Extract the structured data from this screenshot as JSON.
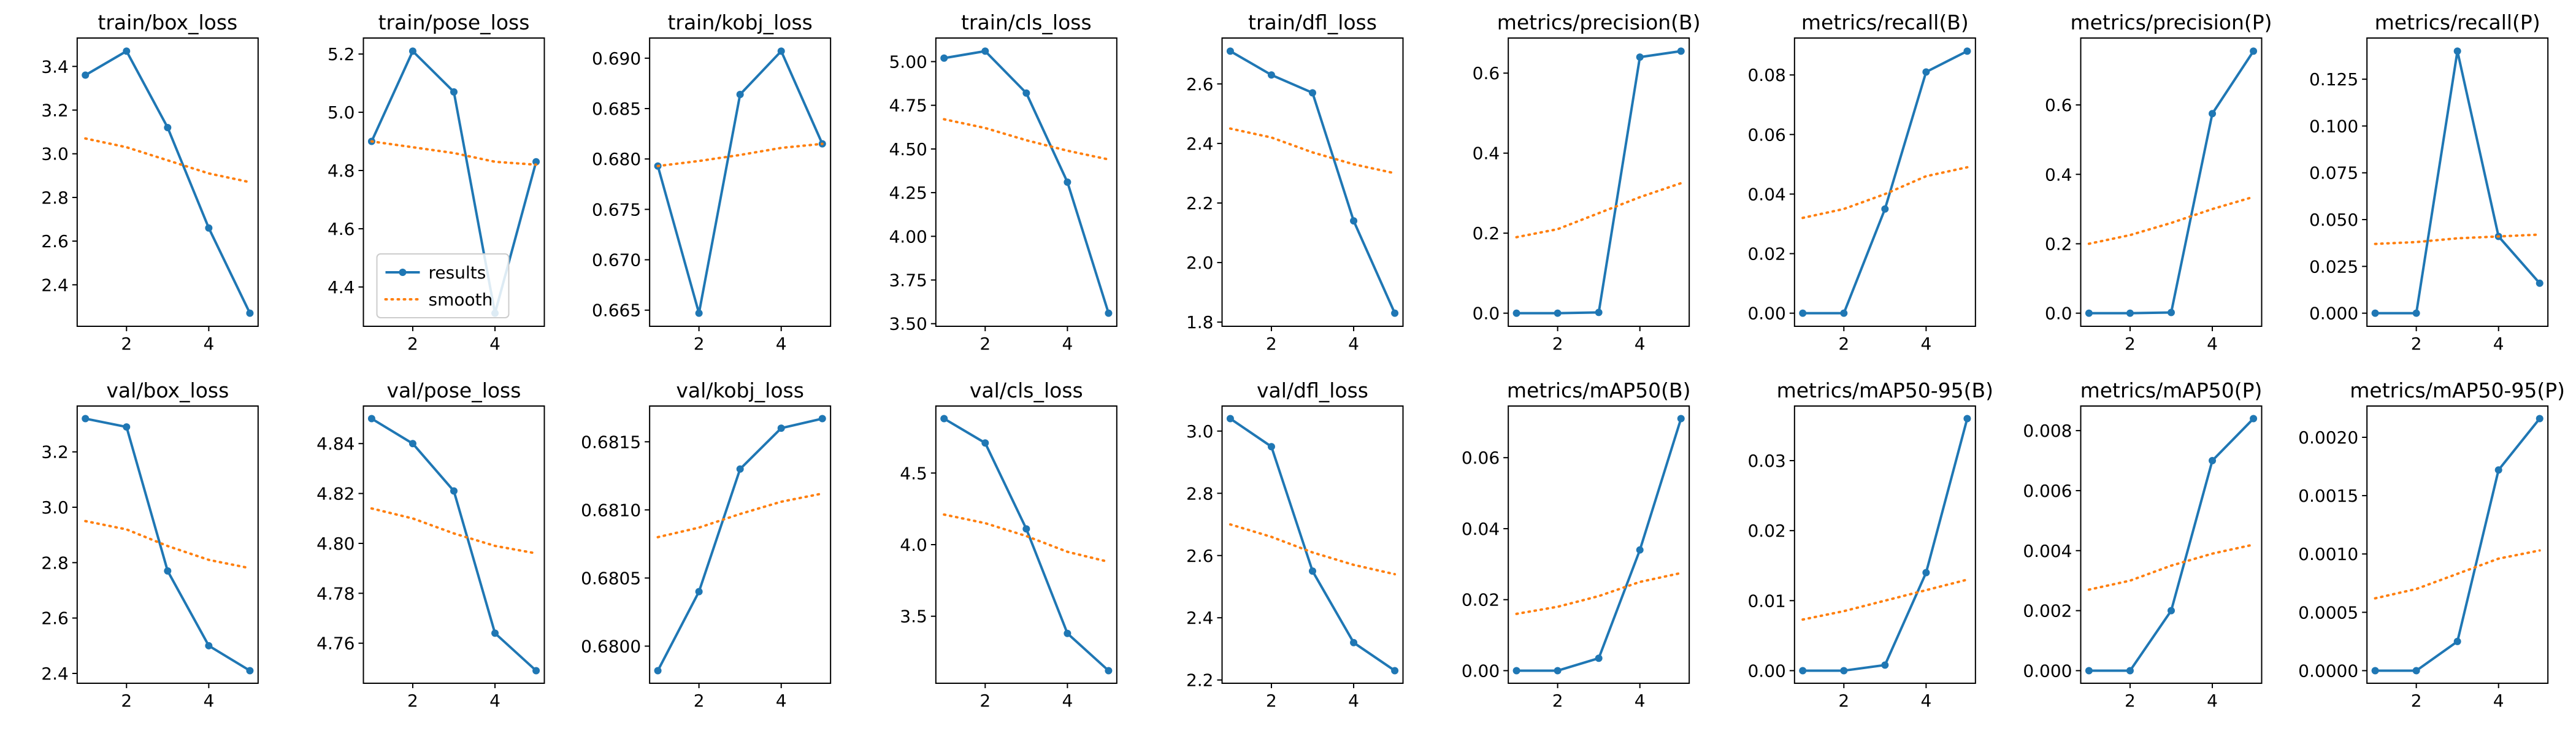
{
  "chart_data": [
    {
      "type": "line",
      "title": "train/box_loss",
      "x": [
        1,
        2,
        3,
        4,
        5
      ],
      "series": [
        {
          "name": "results",
          "values": [
            3.36,
            3.47,
            3.12,
            2.66,
            2.27
          ]
        },
        {
          "name": "smooth",
          "values": [
            3.07,
            3.03,
            2.97,
            2.91,
            2.87
          ]
        }
      ],
      "xticks": [
        "2",
        "4"
      ],
      "yticks": [
        2.4,
        2.6,
        2.8,
        3.0,
        3.2,
        3.4
      ],
      "yticklabels": [
        "2.4",
        "2.6",
        "2.8",
        "3.0",
        "3.2",
        "3.4"
      ]
    },
    {
      "type": "line",
      "title": "train/pose_loss",
      "x": [
        1,
        2,
        3,
        4,
        5
      ],
      "series": [
        {
          "name": "results",
          "values": [
            4.9,
            5.21,
            5.07,
            4.31,
            4.83
          ]
        },
        {
          "name": "smooth",
          "values": [
            4.9,
            4.88,
            4.86,
            4.83,
            4.82
          ]
        }
      ],
      "xticks": [
        "2",
        "4"
      ],
      "yticks": [
        4.4,
        4.6,
        4.8,
        5.0,
        5.2
      ],
      "yticklabels": [
        "4.4",
        "4.6",
        "4.8",
        "5.0",
        "5.2"
      ],
      "legend": {
        "labels": [
          "results",
          "smooth"
        ],
        "placement": "lower-left"
      }
    },
    {
      "type": "line",
      "title": "train/kobj_loss",
      "x": [
        1,
        2,
        3,
        4,
        5
      ],
      "series": [
        {
          "name": "results",
          "values": [
            0.6793,
            0.6647,
            0.6864,
            0.6907,
            0.6815
          ]
        },
        {
          "name": "smooth",
          "values": [
            0.6793,
            0.6798,
            0.6804,
            0.6811,
            0.6815
          ]
        }
      ],
      "xticks": [
        "2",
        "4"
      ],
      "yticks": [
        0.665,
        0.67,
        0.675,
        0.68,
        0.685,
        0.69
      ],
      "yticklabels": [
        "0.665",
        "0.670",
        "0.675",
        "0.680",
        "0.685",
        "0.690"
      ]
    },
    {
      "type": "line",
      "title": "train/cls_loss",
      "x": [
        1,
        2,
        3,
        4,
        5
      ],
      "series": [
        {
          "name": "results",
          "values": [
            5.02,
            5.06,
            4.82,
            4.31,
            3.56
          ]
        },
        {
          "name": "smooth",
          "values": [
            4.67,
            4.62,
            4.55,
            4.49,
            4.44
          ]
        }
      ],
      "xticks": [
        "2",
        "4"
      ],
      "yticks": [
        3.5,
        3.75,
        4.0,
        4.25,
        4.5,
        4.75,
        5.0
      ],
      "yticklabels": [
        "3.50",
        "3.75",
        "4.00",
        "4.25",
        "4.50",
        "4.75",
        "5.00"
      ]
    },
    {
      "type": "line",
      "title": "train/dfl_loss",
      "x": [
        1,
        2,
        3,
        4,
        5
      ],
      "series": [
        {
          "name": "results",
          "values": [
            2.71,
            2.63,
            2.57,
            2.14,
            1.83
          ]
        },
        {
          "name": "smooth",
          "values": [
            2.45,
            2.42,
            2.37,
            2.33,
            2.3
          ]
        }
      ],
      "xticks": [
        "2",
        "4"
      ],
      "yticks": [
        1.8,
        2.0,
        2.2,
        2.4,
        2.6
      ],
      "yticklabels": [
        "1.8",
        "2.0",
        "2.2",
        "2.4",
        "2.6"
      ]
    },
    {
      "type": "line",
      "title": "metrics/precision(B)",
      "x": [
        1,
        2,
        3,
        4,
        5
      ],
      "series": [
        {
          "name": "results",
          "values": [
            0.0,
            0.0,
            0.002,
            0.64,
            0.655
          ]
        },
        {
          "name": "smooth",
          "values": [
            0.19,
            0.21,
            0.25,
            0.29,
            0.325
          ]
        }
      ],
      "xticks": [
        "2",
        "4"
      ],
      "yticks": [
        0.0,
        0.2,
        0.4,
        0.6
      ],
      "yticklabels": [
        "0.0",
        "0.2",
        "0.4",
        "0.6"
      ]
    },
    {
      "type": "line",
      "title": "metrics/recall(B)",
      "x": [
        1,
        2,
        3,
        4,
        5
      ],
      "series": [
        {
          "name": "results",
          "values": [
            0.0,
            0.0,
            0.035,
            0.081,
            0.088
          ]
        },
        {
          "name": "smooth",
          "values": [
            0.032,
            0.035,
            0.04,
            0.046,
            0.049
          ]
        }
      ],
      "xticks": [
        "2",
        "4"
      ],
      "yticks": [
        0.0,
        0.02,
        0.04,
        0.06,
        0.08
      ],
      "yticklabels": [
        "0.00",
        "0.02",
        "0.04",
        "0.06",
        "0.08"
      ]
    },
    {
      "type": "line",
      "title": "metrics/precision(P)",
      "x": [
        1,
        2,
        3,
        4,
        5
      ],
      "series": [
        {
          "name": "results",
          "values": [
            0.0,
            0.0,
            0.002,
            0.575,
            0.755
          ]
        },
        {
          "name": "smooth",
          "values": [
            0.2,
            0.225,
            0.26,
            0.3,
            0.335
          ]
        }
      ],
      "xticks": [
        "2",
        "4"
      ],
      "yticks": [
        0.0,
        0.2,
        0.4,
        0.6
      ],
      "yticklabels": [
        "0.0",
        "0.2",
        "0.4",
        "0.6"
      ]
    },
    {
      "type": "line",
      "title": "metrics/recall(P)",
      "x": [
        1,
        2,
        3,
        4,
        5
      ],
      "series": [
        {
          "name": "results",
          "values": [
            0.0,
            0.0,
            0.14,
            0.041,
            0.016
          ]
        },
        {
          "name": "smooth",
          "values": [
            0.037,
            0.038,
            0.04,
            0.041,
            0.042
          ]
        }
      ],
      "xticks": [
        "2",
        "4"
      ],
      "yticks": [
        0.0,
        0.025,
        0.05,
        0.075,
        0.1,
        0.125
      ],
      "yticklabels": [
        "0.000",
        "0.025",
        "0.050",
        "0.075",
        "0.100",
        "0.125"
      ]
    },
    {
      "type": "line",
      "title": "val/box_loss",
      "x": [
        1,
        2,
        3,
        4,
        5
      ],
      "series": [
        {
          "name": "results",
          "values": [
            3.32,
            3.29,
            2.77,
            2.5,
            2.41
          ]
        },
        {
          "name": "smooth",
          "values": [
            2.95,
            2.92,
            2.86,
            2.81,
            2.78
          ]
        }
      ],
      "xticks": [
        "2",
        "4"
      ],
      "yticks": [
        2.4,
        2.6,
        2.8,
        3.0,
        3.2
      ],
      "yticklabels": [
        "2.4",
        "2.6",
        "2.8",
        "3.0",
        "3.2"
      ]
    },
    {
      "type": "line",
      "title": "val/pose_loss",
      "x": [
        1,
        2,
        3,
        4,
        5
      ],
      "series": [
        {
          "name": "results",
          "values": [
            4.85,
            4.84,
            4.821,
            4.764,
            4.749
          ]
        },
        {
          "name": "smooth",
          "values": [
            4.814,
            4.81,
            4.804,
            4.799,
            4.796
          ]
        }
      ],
      "xticks": [
        "2",
        "4"
      ],
      "yticks": [
        4.76,
        4.78,
        4.8,
        4.82,
        4.84
      ],
      "yticklabels": [
        "4.76",
        "4.78",
        "4.80",
        "4.82",
        "4.84"
      ]
    },
    {
      "type": "line",
      "title": "val/kobj_loss",
      "x": [
        1,
        2,
        3,
        4,
        5
      ],
      "series": [
        {
          "name": "results",
          "values": [
            0.67982,
            0.6804,
            0.6813,
            0.6816,
            0.68167
          ]
        },
        {
          "name": "smooth",
          "values": [
            0.6808,
            0.68087,
            0.68097,
            0.68106,
            0.68112
          ]
        }
      ],
      "xticks": [
        "2",
        "4"
      ],
      "yticks": [
        0.68,
        0.6805,
        0.681,
        0.6815
      ],
      "yticklabels": [
        "0.6800",
        "0.6805",
        "0.6810",
        "0.6815"
      ]
    },
    {
      "type": "line",
      "title": "val/cls_loss",
      "x": [
        1,
        2,
        3,
        4,
        5
      ],
      "series": [
        {
          "name": "results",
          "values": [
            4.88,
            4.71,
            4.11,
            3.38,
            3.12
          ]
        },
        {
          "name": "smooth",
          "values": [
            4.21,
            4.15,
            4.06,
            3.95,
            3.88
          ]
        }
      ],
      "xticks": [
        "2",
        "4"
      ],
      "yticks": [
        3.5,
        4.0,
        4.5
      ],
      "yticklabels": [
        "3.5",
        "4.0",
        "4.5"
      ]
    },
    {
      "type": "line",
      "title": "val/dfl_loss",
      "x": [
        1,
        2,
        3,
        4,
        5
      ],
      "series": [
        {
          "name": "results",
          "values": [
            3.04,
            2.95,
            2.55,
            2.32,
            2.23
          ]
        },
        {
          "name": "smooth",
          "values": [
            2.7,
            2.66,
            2.61,
            2.57,
            2.54
          ]
        }
      ],
      "xticks": [
        "2",
        "4"
      ],
      "yticks": [
        2.2,
        2.4,
        2.6,
        2.8,
        3.0
      ],
      "yticklabels": [
        "2.2",
        "2.4",
        "2.6",
        "2.8",
        "3.0"
      ]
    },
    {
      "type": "line",
      "title": "metrics/mAP50(B)",
      "x": [
        1,
        2,
        3,
        4,
        5
      ],
      "series": [
        {
          "name": "results",
          "values": [
            0.0,
            0.0,
            0.0035,
            0.034,
            0.071
          ]
        },
        {
          "name": "smooth",
          "values": [
            0.016,
            0.018,
            0.021,
            0.025,
            0.0275
          ]
        }
      ],
      "xticks": [
        "2",
        "4"
      ],
      "yticks": [
        0.0,
        0.02,
        0.04,
        0.06
      ],
      "yticklabels": [
        "0.00",
        "0.02",
        "0.04",
        "0.06"
      ]
    },
    {
      "type": "line",
      "title": "metrics/mAP50-95(B)",
      "x": [
        1,
        2,
        3,
        4,
        5
      ],
      "series": [
        {
          "name": "results",
          "values": [
            0.0,
            0.0,
            0.0008,
            0.014,
            0.036
          ]
        },
        {
          "name": "smooth",
          "values": [
            0.0073,
            0.0085,
            0.01,
            0.0115,
            0.013
          ]
        }
      ],
      "xticks": [
        "2",
        "4"
      ],
      "yticks": [
        0.0,
        0.01,
        0.02,
        0.03
      ],
      "yticklabels": [
        "0.00",
        "0.01",
        "0.02",
        "0.03"
      ]
    },
    {
      "type": "line",
      "title": "metrics/mAP50(P)",
      "x": [
        1,
        2,
        3,
        4,
        5
      ],
      "series": [
        {
          "name": "results",
          "values": [
            0.0,
            0.0,
            0.002,
            0.007,
            0.0084
          ]
        },
        {
          "name": "smooth",
          "values": [
            0.0027,
            0.003,
            0.0035,
            0.0039,
            0.0042
          ]
        }
      ],
      "xticks": [
        "2",
        "4"
      ],
      "yticks": [
        0.0,
        0.002,
        0.004,
        0.006,
        0.008
      ],
      "yticklabels": [
        "0.000",
        "0.002",
        "0.004",
        "0.006",
        "0.008"
      ]
    },
    {
      "type": "line",
      "title": "metrics/mAP50-95(P)",
      "x": [
        1,
        2,
        3,
        4,
        5
      ],
      "series": [
        {
          "name": "results",
          "values": [
            0.0,
            0.0,
            0.00025,
            0.00172,
            0.00216
          ]
        },
        {
          "name": "smooth",
          "values": [
            0.00062,
            0.0007,
            0.00083,
            0.00096,
            0.00103
          ]
        }
      ],
      "xticks": [
        "2",
        "4"
      ],
      "yticks": [
        0.0,
        0.0005,
        0.001,
        0.0015,
        0.002
      ],
      "yticklabels": [
        "0.0000",
        "0.0005",
        "0.0010",
        "0.0015",
        "0.0020"
      ]
    }
  ],
  "style": {
    "results_color": "#1f77b4",
    "smooth_color": "#ff7f0e",
    "axis_color": "#000000",
    "background": "#ffffff"
  }
}
